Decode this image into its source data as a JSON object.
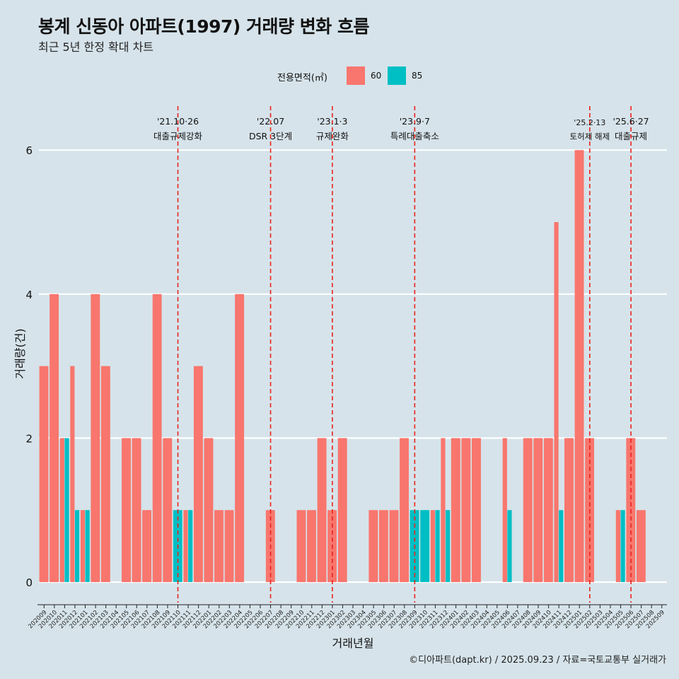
{
  "title": "봉계 신동아 아파트(1997) 거래량 변화 흐름",
  "subtitle": "최근 5년 한정 확대 차트",
  "legend": {
    "title": "전용면적(㎡)",
    "items": [
      {
        "label": "60",
        "color": "#f8766d"
      },
      {
        "label": "85",
        "color": "#00bfc4"
      }
    ]
  },
  "caption": "©디아파트(dapt.kr) / 2025.09.23 / 자료=국토교통부 실거래가",
  "chart_data": {
    "type": "bar",
    "stacked": false,
    "dodge": true,
    "xlabel": "거래년월",
    "ylabel": "거래량(건)",
    "ylim": [
      -0.25,
      6.0
    ],
    "yticks": [
      0,
      2,
      4,
      6
    ],
    "categories": [
      "202009",
      "202010",
      "202011",
      "202012",
      "202101",
      "202102",
      "202103",
      "202104",
      "202105",
      "202106",
      "202107",
      "202108",
      "202109",
      "202110",
      "202111",
      "202112",
      "202201",
      "202202",
      "202203",
      "202204",
      "202205",
      "202206",
      "202207",
      "202208",
      "202209",
      "202210",
      "202211",
      "202212",
      "202301",
      "202302",
      "202303",
      "202304",
      "202305",
      "202306",
      "202307",
      "202308",
      "202309",
      "202310",
      "202311",
      "202312",
      "202401",
      "202402",
      "202403",
      "202404",
      "202405",
      "202406",
      "202407",
      "202408",
      "202409",
      "202410",
      "202411",
      "202412",
      "202501",
      "202502",
      "202503",
      "202504",
      "202505",
      "202506",
      "202507",
      "202508",
      "202509"
    ],
    "series": [
      {
        "name": "60",
        "color": "#f8766d",
        "values": [
          3,
          4,
          2,
          3,
          1,
          4,
          3,
          0,
          2,
          2,
          1,
          4,
          2,
          0,
          1,
          3,
          2,
          1,
          1,
          4,
          0,
          0,
          1,
          0,
          0,
          1,
          1,
          2,
          1,
          2,
          0,
          0,
          1,
          1,
          1,
          2,
          0,
          0,
          1,
          2,
          2,
          2,
          2,
          0,
          0,
          2,
          0,
          2,
          2,
          2,
          5,
          2,
          6,
          2,
          0,
          0,
          1,
          2,
          1,
          0,
          0
        ]
      },
      {
        "name": "85",
        "color": "#00bfc4",
        "values": [
          0,
          0,
          2,
          1,
          1,
          0,
          0,
          0,
          0,
          0,
          0,
          0,
          0,
          1,
          1,
          0,
          0,
          0,
          0,
          0,
          0,
          0,
          0,
          0,
          0,
          0,
          0,
          0,
          0,
          0,
          0,
          0,
          0,
          0,
          0,
          0,
          1,
          1,
          1,
          1,
          0,
          0,
          0,
          0,
          0,
          1,
          0,
          0,
          0,
          0,
          1,
          0,
          0,
          0,
          0,
          0,
          1,
          0,
          0,
          0,
          0
        ]
      }
    ],
    "annotations": [
      {
        "category": "202110",
        "date": "'21.10·26",
        "label": "대출규제강화",
        "line": "dashed"
      },
      {
        "category": "202207",
        "date": "'22.07",
        "label": "DSR 3단계",
        "line": "dashed"
      },
      {
        "category": "202301",
        "date": "'23.1·3",
        "label": "규제완화",
        "line": "dashed"
      },
      {
        "category": "202309",
        "date": "'23.9·7",
        "label": "특례대출축소",
        "line": "dashed"
      },
      {
        "category": "202502",
        "date": "'25.2·13",
        "label": "토허제 해제",
        "line": "dashed"
      },
      {
        "category": "202506",
        "date": "'25.6·27",
        "label": "대출규제",
        "line": "dashed"
      }
    ],
    "grid": "horizontal-major",
    "legend_position": "top"
  }
}
